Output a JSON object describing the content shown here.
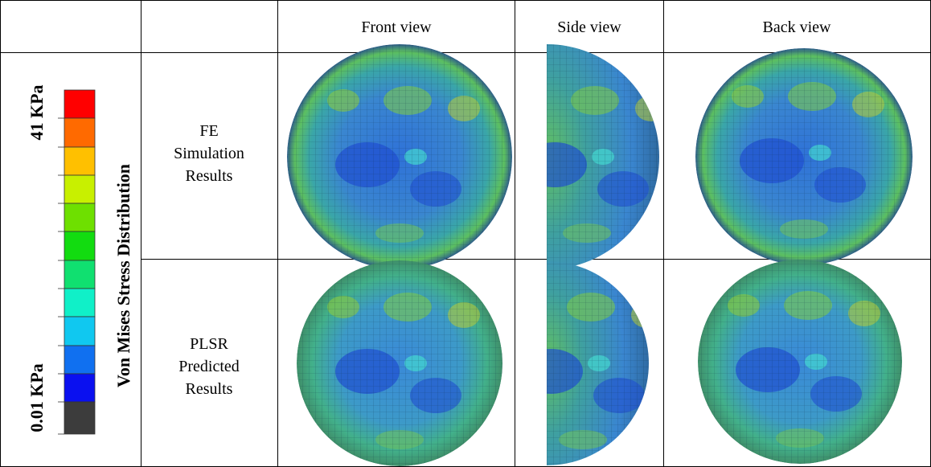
{
  "header": {
    "columns": [
      "Front view",
      "Side view",
      "Back view"
    ]
  },
  "rows": [
    {
      "label": [
        "FE",
        "Simulation",
        "Results"
      ]
    },
    {
      "label": [
        "PLSR",
        "Predicted",
        "Results"
      ]
    }
  ],
  "legend": {
    "title": "Von Mises Stress Distribution",
    "max_label": "41 KPa",
    "min_label": "0.01 KPa"
  }
}
